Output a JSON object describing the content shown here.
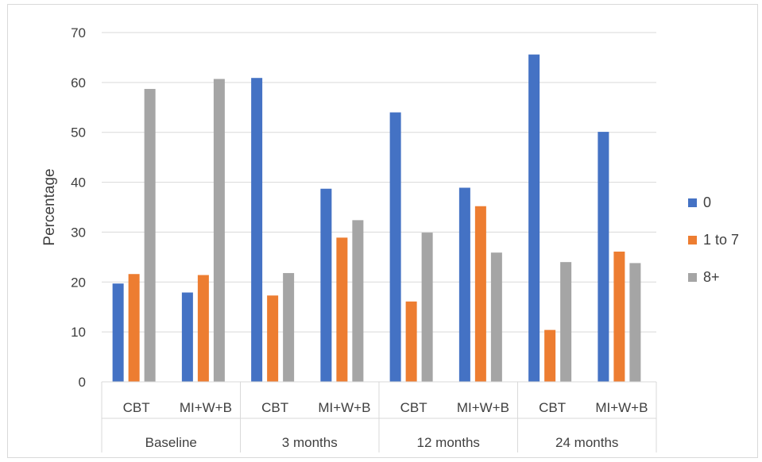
{
  "chart_data": {
    "type": "bar",
    "title": "",
    "xlabel": "",
    "ylabel": "Percentage",
    "ylim": [
      0,
      70
    ],
    "yticks": [
      "0",
      "10",
      "20",
      "30",
      "40",
      "50",
      "60",
      "70"
    ],
    "grid": true,
    "legend_position": "right",
    "groups": [
      {
        "label": "Baseline",
        "categories": [
          "CBT",
          "MI+W+B"
        ]
      },
      {
        "label": "3 months",
        "categories": [
          "CBT",
          "MI+W+B"
        ]
      },
      {
        "label": "12 months",
        "categories": [
          "CBT",
          "MI+W+B"
        ]
      },
      {
        "label": "24 months",
        "categories": [
          "CBT",
          "MI+W+B"
        ]
      }
    ],
    "series": [
      {
        "name": "0",
        "color": "#4472C4",
        "values": [
          19.7,
          17.9,
          60.9,
          38.7,
          54.0,
          38.9,
          65.6,
          50.1
        ]
      },
      {
        "name": "1 to 7",
        "color": "#ED7D31",
        "values": [
          21.6,
          21.4,
          17.3,
          28.9,
          16.1,
          35.2,
          10.4,
          26.1
        ]
      },
      {
        "name": "8+",
        "color": "#A5A5A5",
        "values": [
          58.7,
          60.7,
          21.8,
          32.4,
          29.9,
          25.9,
          24.0,
          23.8
        ]
      }
    ]
  }
}
